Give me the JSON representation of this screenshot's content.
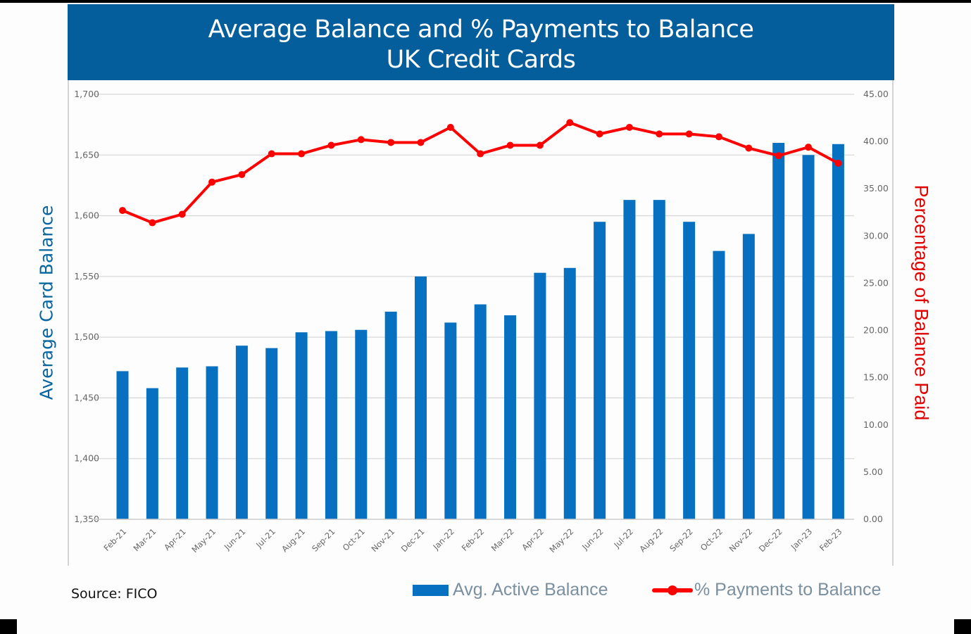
{
  "title": {
    "line1": "Average Balance and % Payments to Balance",
    "line2": "UK Credit Cards"
  },
  "source": "Source: FICO",
  "legend": {
    "bar_label": "Avg. Active Balance",
    "line_label": "% Payments to Balance"
  },
  "colors": {
    "title_band": "#055e9c",
    "bar": "#0870c0",
    "line": "#ff0000",
    "left_axis_title": "#07659f",
    "right_axis_title": "#e00000",
    "grid": "#d9d9d9"
  },
  "chart_data": {
    "type": "bar",
    "combo": "bar + line (dual axis)",
    "title": "Average Balance and % Payments to Balance UK Credit Cards",
    "xlabel": "",
    "ylabel": "Average Card Balance",
    "y2label": "Percentage of Balance Paid",
    "ylim": [
      1350,
      1700
    ],
    "y2lim": [
      0,
      45
    ],
    "yticks": [
      "1,350",
      "1,400",
      "1,450",
      "1,500",
      "1,550",
      "1,600",
      "1,650",
      "1,700"
    ],
    "y2ticks": [
      "0.00",
      "5.00",
      "10.00",
      "15.00",
      "20.00",
      "25.00",
      "30.00",
      "35.00",
      "40.00",
      "45.00"
    ],
    "grid": true,
    "legend_position": "bottom-right",
    "categories": [
      "Feb-21",
      "Mar-21",
      "Apr-21",
      "May-21",
      "Jun-21",
      "Jul-21",
      "Aug-21",
      "Sep-21",
      "Oct-21",
      "Nov-21",
      "Dec-21",
      "Jan-22",
      "Feb-22",
      "Mar-22",
      "Apr-22",
      "May-22",
      "Jun-22",
      "Jul-22",
      "Aug-22",
      "Sep-22",
      "Oct-22",
      "Nov-22",
      "Dec-22",
      "Jan-23",
      "Feb-23"
    ],
    "series": [
      {
        "name": "Avg. Active Balance",
        "type": "bar",
        "axis": "left",
        "values": [
          1472,
          1458,
          1475,
          1476,
          1493,
          1491,
          1504,
          1505,
          1506,
          1521,
          1550,
          1512,
          1527,
          1518,
          1553,
          1557,
          1595,
          1613,
          1613,
          1595,
          1571,
          1585,
          1660,
          1650,
          1659
        ]
      },
      {
        "name": "% Payments to Balance",
        "type": "line",
        "axis": "right",
        "values": [
          32.7,
          31.4,
          32.3,
          35.7,
          36.5,
          38.7,
          38.7,
          39.6,
          40.2,
          39.9,
          39.9,
          41.5,
          38.7,
          39.6,
          39.6,
          42.0,
          40.8,
          41.5,
          40.8,
          40.8,
          40.5,
          39.3,
          38.5,
          39.4,
          37.7
        ]
      }
    ]
  }
}
